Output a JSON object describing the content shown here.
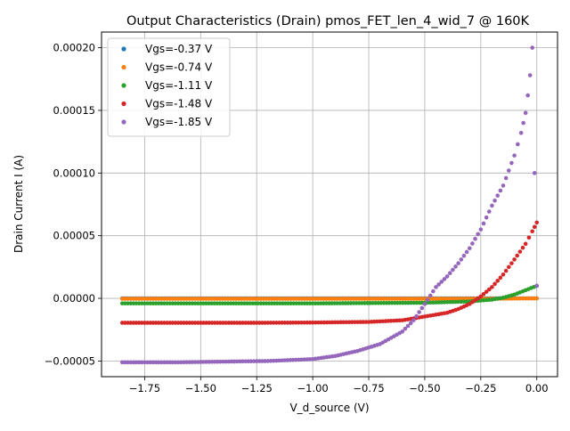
{
  "chart_data": {
    "type": "scatter",
    "title": "Output Characteristics (Drain) pmos_FET_len_4_wid_7 @ 160K",
    "xlabel": "V_d_source (V)",
    "ylabel": "Drain Current I (A)",
    "xlim": [
      -1.9425,
      0.0925
    ],
    "ylim": [
      -6.25e-05,
      0.0002125
    ],
    "x_ticks": [
      -1.75,
      -1.5,
      -1.25,
      -1.0,
      -0.75,
      -0.5,
      -0.25,
      0.0
    ],
    "x_tick_labels": [
      "−1.75",
      "−1.50",
      "−1.25",
      "−1.00",
      "−0.75",
      "−0.50",
      "−0.25",
      "0.00"
    ],
    "y_ticks": [
      -5e-05,
      0.0,
      5e-05,
      0.0001,
      0.00015,
      0.0002
    ],
    "y_tick_labels": [
      "−0.00005",
      "0.00000",
      "0.00005",
      "0.00010",
      "0.00015",
      "0.00020"
    ],
    "grid": true,
    "legend_position": "top-left",
    "series": [
      {
        "name": "Vgs=-0.37 V",
        "color": "#1f77b4",
        "points": [
          [
            -1.85,
            0.0
          ],
          [
            -1.5,
            0.0
          ],
          [
            -1.0,
            0.0
          ],
          [
            -0.5,
            0.0
          ],
          [
            0.0,
            0.0
          ]
        ]
      },
      {
        "name": "Vgs=-0.74 V",
        "color": "#ff7f0e",
        "points": [
          [
            -1.85,
            -3e-07
          ],
          [
            -1.5,
            -3e-07
          ],
          [
            -1.0,
            -3e-07
          ],
          [
            -0.5,
            -3e-07
          ],
          [
            -0.2,
            -3e-07
          ],
          [
            0.0,
            0.0
          ]
        ]
      },
      {
        "name": "Vgs=-1.11 V",
        "color": "#2ca02c",
        "points": [
          [
            -1.85,
            -4e-06
          ],
          [
            -1.5,
            -4e-06
          ],
          [
            -1.0,
            -4e-06
          ],
          [
            -0.5,
            -3.5e-06
          ],
          [
            -0.3,
            -2.5e-06
          ],
          [
            -0.2,
            -1e-06
          ],
          [
            -0.15,
            5e-07
          ],
          [
            -0.1,
            3e-06
          ],
          [
            -0.05,
            6.5e-06
          ],
          [
            0.0,
            1e-05
          ]
        ]
      },
      {
        "name": "Vgs=-1.48 V",
        "color": "#d62728",
        "points": [
          [
            -1.85,
            -1.95e-05
          ],
          [
            -1.5,
            -1.95e-05
          ],
          [
            -1.25,
            -1.95e-05
          ],
          [
            -1.0,
            -1.93e-05
          ],
          [
            -0.75,
            -1.88e-05
          ],
          [
            -0.6,
            -1.75e-05
          ],
          [
            -0.5,
            -1.45e-05
          ],
          [
            -0.45,
            -1.3e-05
          ],
          [
            -0.4,
            -1.15e-05
          ],
          [
            -0.35,
            -8.5e-06
          ],
          [
            -0.3,
            -4.5e-06
          ],
          [
            -0.25,
            1.5e-06
          ],
          [
            -0.2,
            9e-06
          ],
          [
            -0.15,
            1.9e-05
          ],
          [
            -0.1,
            3.1e-05
          ],
          [
            -0.05,
            4.35e-05
          ],
          [
            -0.02,
            5.35e-05
          ],
          [
            0.0,
            6.05e-05
          ]
        ]
      },
      {
        "name": "Vgs=-1.85 V",
        "color": "#9467bd",
        "points": [
          [
            -1.85,
            -5.1e-05
          ],
          [
            -1.6,
            -5.1e-05
          ],
          [
            -1.4,
            -5.05e-05
          ],
          [
            -1.2,
            -5e-05
          ],
          [
            -1.0,
            -4.85e-05
          ],
          [
            -0.9,
            -4.6e-05
          ],
          [
            -0.8,
            -4.2e-05
          ],
          [
            -0.7,
            -3.65e-05
          ],
          [
            -0.6,
            -2.65e-05
          ],
          [
            -0.55,
            -1.75e-05
          ],
          [
            -0.5,
            -4.5e-06
          ],
          [
            -0.45,
            9e-06
          ],
          [
            -0.4,
            1.75e-05
          ],
          [
            -0.35,
            2.8e-05
          ],
          [
            -0.3,
            4e-05
          ],
          [
            -0.25,
            5.5e-05
          ],
          [
            -0.2,
            7.4e-05
          ],
          [
            -0.15,
            9e-05
          ],
          [
            -0.1,
            0.000114
          ],
          [
            -0.07,
            0.000132
          ],
          [
            -0.05,
            0.000148
          ],
          [
            -0.04,
            0.000162
          ],
          [
            -0.03,
            0.000178
          ],
          [
            -0.02,
            0.0002
          ],
          [
            -0.01,
            0.0001
          ],
          [
            0.0,
            1e-05
          ]
        ]
      }
    ]
  }
}
